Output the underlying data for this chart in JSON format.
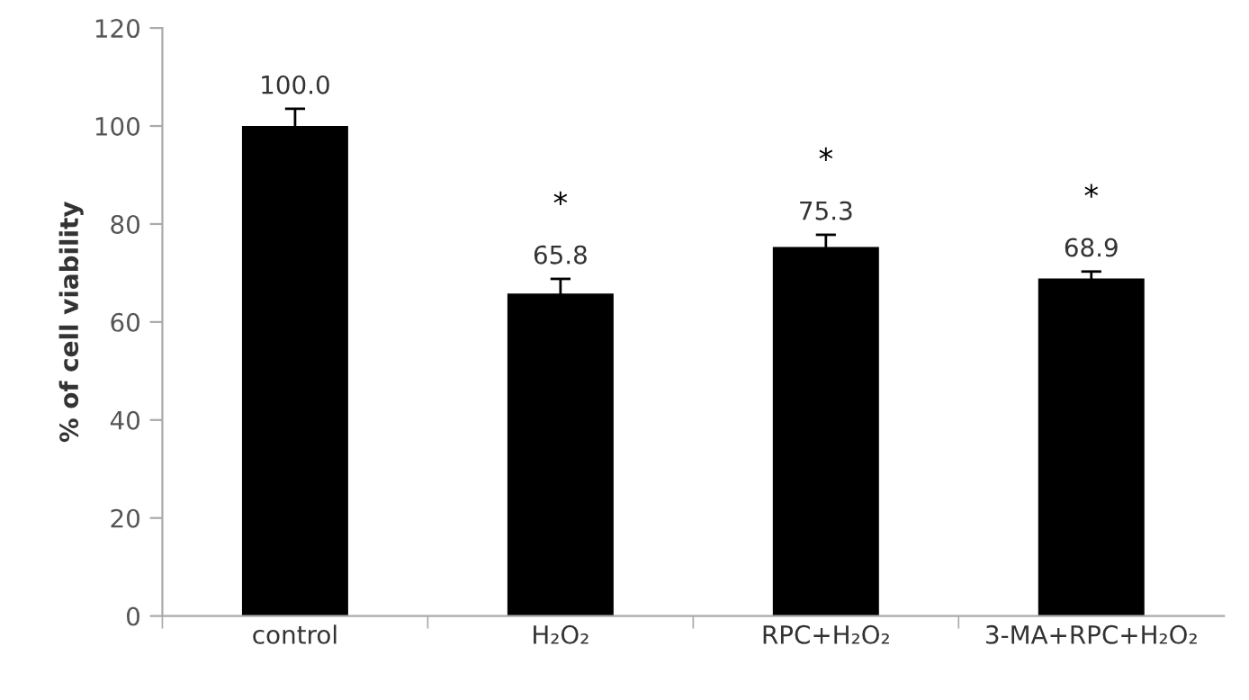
{
  "chart_data": {
    "type": "bar",
    "ylabel": "% of cell viability",
    "categories": [
      "control",
      "H₂O₂",
      "RPC+H₂O₂",
      "3-MA+RPC+H₂O₂"
    ],
    "values": [
      100.0,
      65.8,
      75.3,
      68.9
    ],
    "errors": [
      3.5,
      3,
      2.5,
      1.4
    ],
    "value_labels": [
      "100.0",
      "65.8",
      "75.3",
      "68.9"
    ],
    "color": "#000000",
    "ylim": [
      0,
      120
    ],
    "yticks": [
      0,
      20,
      40,
      60,
      80,
      100,
      120
    ],
    "grid": false,
    "legend": false,
    "annotations": [
      "*",
      "*",
      "*"
    ]
  }
}
